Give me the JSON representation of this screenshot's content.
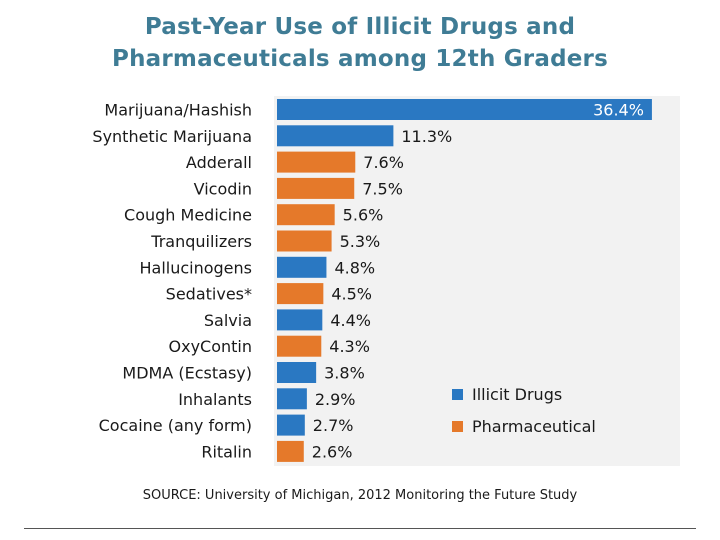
{
  "title_line1": "Past-Year Use of Illicit Drugs and",
  "title_line2": "Pharmaceuticals among 12th Graders",
  "source": "SOURCE: University of Michigan, 2012 Monitoring the Future Study",
  "colors": {
    "illicit": "#2a78c2",
    "pharmaceutical": "#e5792a",
    "title": "#3f7c95",
    "plot_background": "#f2f2f2"
  },
  "chart_data": {
    "type": "bar",
    "orientation": "horizontal",
    "title": "Past-Year Use of Illicit Drugs and Pharmaceuticals among 12th Graders",
    "xlabel": "",
    "ylabel": "",
    "xlim": [
      0,
      40
    ],
    "grid": false,
    "legend_position": "bottom-right",
    "series": [
      {
        "name": "Illicit Drugs",
        "color": "#2a78c2"
      },
      {
        "name": "Pharmaceutical",
        "color": "#e5792a"
      }
    ],
    "bars": [
      {
        "category": "Marijuana/Hashish",
        "value": 36.4,
        "label": "36.4%",
        "series": "Illicit Drugs"
      },
      {
        "category": "Synthetic Marijuana",
        "value": 11.3,
        "label": "11.3%",
        "series": "Illicit Drugs"
      },
      {
        "category": "Adderall",
        "value": 7.6,
        "label": "7.6%",
        "series": "Pharmaceutical"
      },
      {
        "category": "Vicodin",
        "value": 7.5,
        "label": "7.5%",
        "series": "Pharmaceutical"
      },
      {
        "category": "Cough Medicine",
        "value": 5.6,
        "label": "5.6%",
        "series": "Pharmaceutical"
      },
      {
        "category": "Tranquilizers",
        "value": 5.3,
        "label": "5.3%",
        "series": "Pharmaceutical"
      },
      {
        "category": "Hallucinogens",
        "value": 4.8,
        "label": "4.8%",
        "series": "Illicit Drugs"
      },
      {
        "category": "Sedatives*",
        "value": 4.5,
        "label": "4.5%",
        "series": "Pharmaceutical"
      },
      {
        "category": "Salvia",
        "value": 4.4,
        "label": "4.4%",
        "series": "Illicit Drugs"
      },
      {
        "category": "OxyContin",
        "value": 4.3,
        "label": "4.3%",
        "series": "Pharmaceutical"
      },
      {
        "category": "MDMA (Ecstasy)",
        "value": 3.8,
        "label": "3.8%",
        "series": "Illicit Drugs"
      },
      {
        "category": "Inhalants",
        "value": 2.9,
        "label": "2.9%",
        "series": "Illicit Drugs"
      },
      {
        "category": "Cocaine (any form)",
        "value": 2.7,
        "label": "2.7%",
        "series": "Illicit Drugs"
      },
      {
        "category": "Ritalin",
        "value": 2.6,
        "label": "2.6%",
        "series": "Pharmaceutical"
      }
    ]
  }
}
